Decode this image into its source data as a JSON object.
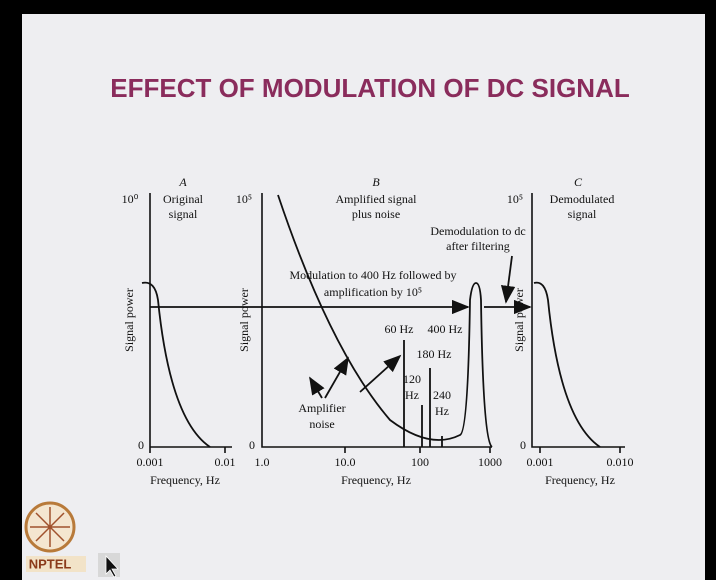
{
  "header": {
    "title": "EFFECT OF MODULATION OF DC SIGNAL"
  },
  "panels": [
    {
      "letter": "A",
      "caption": [
        "Original",
        "signal"
      ],
      "y_top": "10⁰",
      "y_bottom": "0",
      "y_label": "Signal power",
      "x_ticks": [
        "0.001",
        "0.01"
      ],
      "x_label": "Frequency, Hz"
    },
    {
      "letter": "B",
      "caption": [
        "Amplified signal",
        "plus noise"
      ],
      "y_top": "10⁵",
      "y_bottom": "0",
      "y_label": "Signal power",
      "x_ticks": [
        "1.0",
        "10.0",
        "100",
        "1000"
      ],
      "x_label": "Frequency, Hz"
    },
    {
      "letter": "C",
      "caption": [
        "Demodulated",
        "signal"
      ],
      "y_top": "10⁵",
      "y_bottom": "0",
      "y_label": "Signal power",
      "x_ticks": [
        "0.001",
        "0.010"
      ],
      "x_label": "Frequency, Hz"
    }
  ],
  "annotations": {
    "demodulation": [
      "Demodulation to dc",
      "after filtering"
    ],
    "modulation": [
      "Modulation to 400 Hz followed by",
      "amplification by 10⁵"
    ],
    "hz60": "60 Hz",
    "hz400": "400 Hz",
    "hz180": "180 Hz",
    "hz120": [
      "120",
      "Hz"
    ],
    "hz240": [
      "240",
      "Hz"
    ],
    "noise": [
      "Amplifier",
      "noise"
    ]
  },
  "logo": {
    "text": "NPTEL"
  }
}
